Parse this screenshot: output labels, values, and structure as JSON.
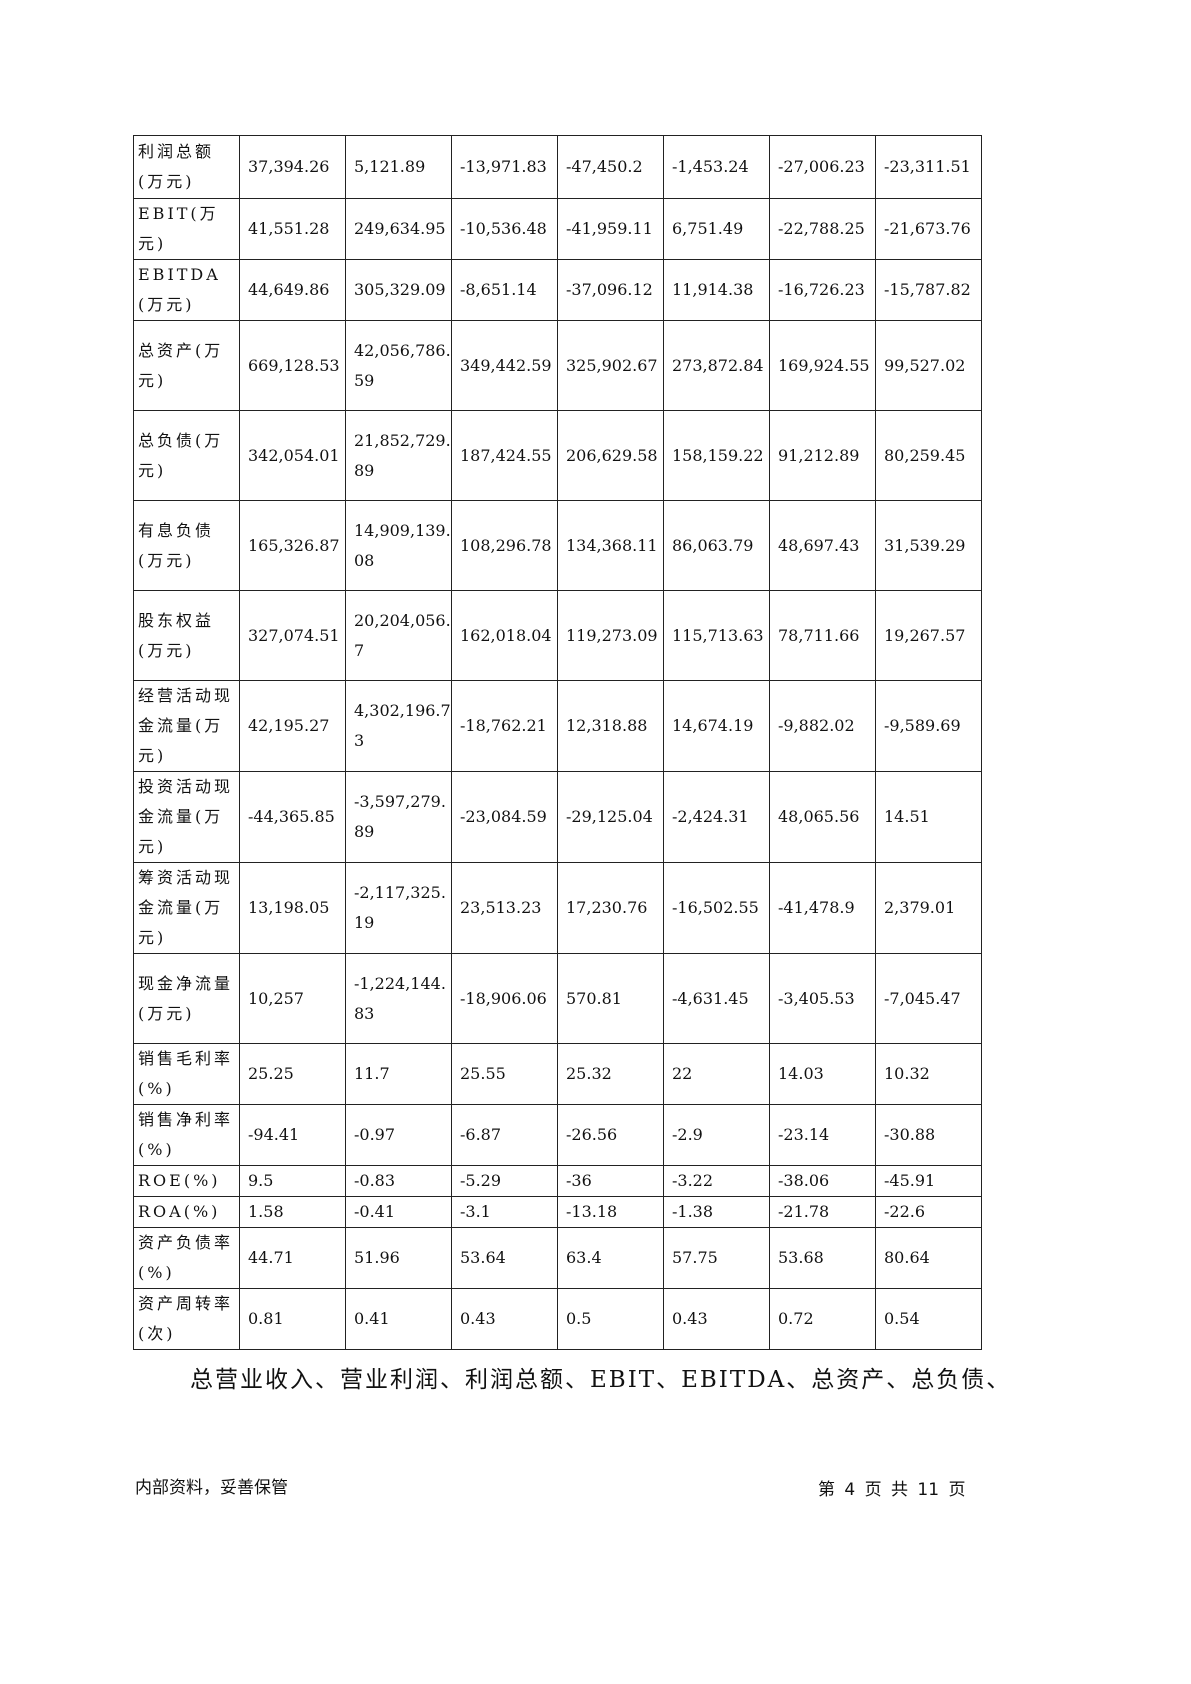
{
  "table": {
    "rows": [
      {
        "label": "利润总额(万元)",
        "values": [
          "37,394.26",
          "5,121.89",
          "-13,971.83",
          "-47,450.2",
          "-1,453.24",
          "-27,006.23",
          "-23,311.51"
        ]
      },
      {
        "label": "EBIT(万元)",
        "values": [
          "41,551.28",
          "249,634.95",
          "-10,536.48",
          "-41,959.11",
          "6,751.49",
          "-22,788.25",
          "-21,673.76"
        ]
      },
      {
        "label": "EBITDA(万元)",
        "values": [
          "44,649.86",
          "305,329.09",
          "-8,651.14",
          "-37,096.12",
          "11,914.38",
          "-16,726.23",
          "-15,787.82"
        ]
      },
      {
        "label": "总资产(万元)",
        "values": [
          "669,128.53",
          "42,056,786.59",
          "349,442.59",
          "325,902.67",
          "273,872.84",
          "169,924.55",
          "99,527.02"
        ]
      },
      {
        "label": "总负债(万元)",
        "values": [
          "342,054.01",
          "21,852,729.89",
          "187,424.55",
          "206,629.58",
          "158,159.22",
          "91,212.89",
          "80,259.45"
        ]
      },
      {
        "label": "有息负债(万元)",
        "values": [
          "165,326.87",
          "14,909,139.08",
          "108,296.78",
          "134,368.11",
          "86,063.79",
          "48,697.43",
          "31,539.29"
        ]
      },
      {
        "label": "股东权益(万元)",
        "values": [
          "327,074.51",
          "20,204,056.7",
          "162,018.04",
          "119,273.09",
          "115,713.63",
          "78,711.66",
          "19,267.57"
        ]
      },
      {
        "label": "经营活动现金流量(万元)",
        "values": [
          "42,195.27",
          "4,302,196.73",
          "-18,762.21",
          "12,318.88",
          "14,674.19",
          "-9,882.02",
          "-9,589.69"
        ]
      },
      {
        "label": "投资活动现金流量(万元)",
        "values": [
          "-44,365.85",
          "-3,597,279.89",
          "-23,084.59",
          "-29,125.04",
          "-2,424.31",
          "48,065.56",
          "14.51"
        ]
      },
      {
        "label": "筹资活动现金流量(万元)",
        "values": [
          "13,198.05",
          "-2,117,325.19",
          "23,513.23",
          "17,230.76",
          "-16,502.55",
          "-41,478.9",
          "2,379.01"
        ]
      },
      {
        "label": "现金净流量(万元)",
        "values": [
          "10,257",
          "-1,224,144.83",
          "-18,906.06",
          "570.81",
          "-4,631.45",
          "-3,405.53",
          "-7,045.47"
        ]
      },
      {
        "label": "销售毛利率(%)",
        "values": [
          "25.25",
          "11.7",
          "25.55",
          "25.32",
          "22",
          "14.03",
          "10.32"
        ]
      },
      {
        "label": "销售净利率(%)",
        "values": [
          "-94.41",
          "-0.97",
          "-6.87",
          "-26.56",
          "-2.9",
          "-23.14",
          "-30.88"
        ]
      },
      {
        "label": "ROE(%)",
        "values": [
          "9.5",
          "-0.83",
          "-5.29",
          "-36",
          "-3.22",
          "-38.06",
          "-45.91"
        ]
      },
      {
        "label": "ROA(%)",
        "values": [
          "1.58",
          "-0.41",
          "-3.1",
          "-13.18",
          "-1.38",
          "-21.78",
          "-22.6"
        ]
      },
      {
        "label": "资产负债率(%)",
        "values": [
          "44.71",
          "51.96",
          "53.64",
          "63.4",
          "57.75",
          "53.68",
          "80.64"
        ]
      },
      {
        "label": "资产周转率(次)",
        "values": [
          "0.81",
          "0.41",
          "0.43",
          "0.5",
          "0.43",
          "0.72",
          "0.54"
        ]
      }
    ]
  },
  "paragraph": "总营业收入、营业利润、利润总额、EBIT、EBITDA、总资产、总负债、",
  "footer": {
    "left": "内部资料，妥善保管",
    "right": "第 4 页  共 11 页"
  }
}
